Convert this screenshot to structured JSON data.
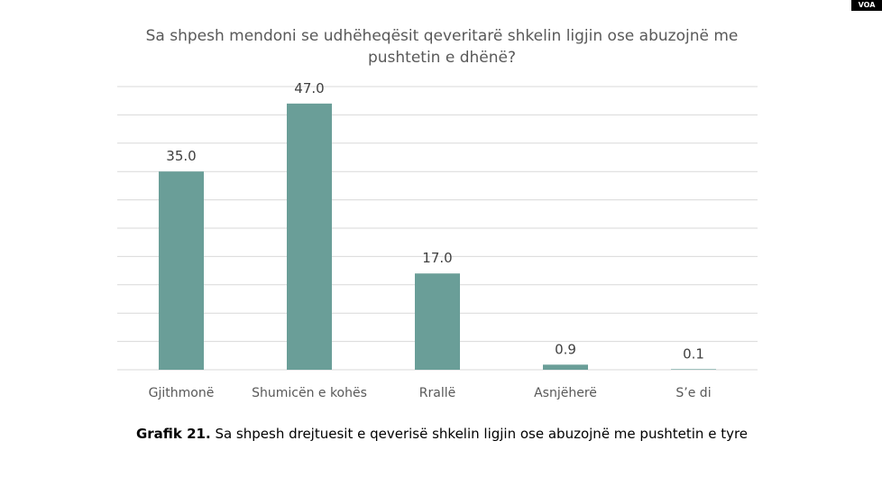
{
  "badge": "VOA",
  "chart_data": {
    "type": "bar",
    "title": "Sa shpesh mendoni se udhëheqësit qeveritarë shkelin ligjin ose abuzojnë me pushtetin e dhënë?",
    "categories": [
      "Gjithmonë",
      "Shumicën e kohës",
      "Rrallë",
      "Asnjëherë",
      "S’e di"
    ],
    "values": [
      35.0,
      47.0,
      17.0,
      0.9,
      0.1
    ],
    "value_labels": [
      "35.0",
      "47.0",
      "17.0",
      "0.9",
      "0.1"
    ],
    "ylim": [
      0,
      50
    ],
    "grid": true,
    "bar_color": "#6a9e98",
    "grid_color": "#d9d9d9",
    "label_color": "#404040"
  },
  "caption": {
    "label": "Grafik 21.",
    "text": " Sa shpesh drejtuesit e qeverisë shkelin ligjin ose abuzojnë me pushtetin e tyre"
  }
}
